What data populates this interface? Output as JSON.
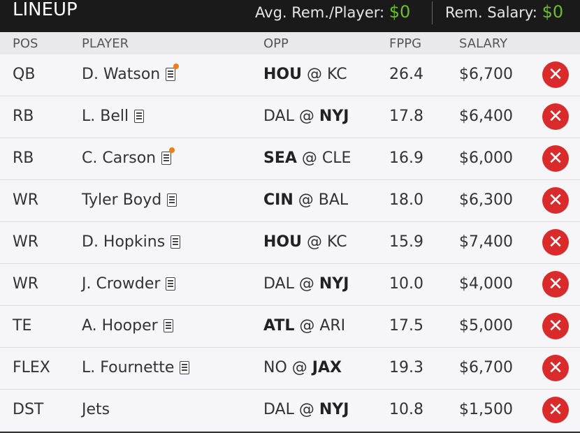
{
  "header": {
    "title": "LINEUP",
    "avg_label": "Avg. Rem./Player:",
    "avg_value": "$0",
    "rem_label": "Rem. Salary:",
    "rem_value": "$0"
  },
  "columns": {
    "pos": "POS",
    "player": "PLAYER",
    "opp": "OPP",
    "fppg": "FPPG",
    "salary": "SALARY"
  },
  "rows": [
    {
      "pos": "QB",
      "player": "D. Watson",
      "news_alert": true,
      "opp_bold": "HOU",
      "opp_rest": " @ KC",
      "fppg": "26.4",
      "salary": "$6,700"
    },
    {
      "pos": "RB",
      "player": "L. Bell",
      "news_alert": false,
      "opp_pre": "DAL @ ",
      "opp_bold": "NYJ",
      "fppg": "17.8",
      "salary": "$6,400"
    },
    {
      "pos": "RB",
      "player": "C. Carson",
      "news_alert": true,
      "opp_bold": "SEA",
      "opp_rest": " @ CLE",
      "fppg": "16.9",
      "salary": "$6,000"
    },
    {
      "pos": "WR",
      "player": "Tyler Boyd",
      "news_alert": false,
      "opp_bold": "CIN",
      "opp_rest": " @ BAL",
      "fppg": "18.0",
      "salary": "$6,300"
    },
    {
      "pos": "WR",
      "player": "D. Hopkins",
      "news_alert": false,
      "opp_bold": "HOU",
      "opp_rest": " @ KC",
      "fppg": "15.9",
      "salary": "$7,400"
    },
    {
      "pos": "WR",
      "player": "J. Crowder",
      "news_alert": false,
      "opp_pre": "DAL @ ",
      "opp_bold": "NYJ",
      "fppg": "10.0",
      "salary": "$4,000"
    },
    {
      "pos": "TE",
      "player": "A. Hooper",
      "news_alert": false,
      "opp_bold": "ATL",
      "opp_rest": " @ ARI",
      "fppg": "17.5",
      "salary": "$5,000"
    },
    {
      "pos": "FLEX",
      "player": "L. Fournette",
      "news_alert": false,
      "opp_pre": "NO @ ",
      "opp_bold": "JAX",
      "fppg": "19.3",
      "salary": "$6,700"
    },
    {
      "pos": "DST",
      "player": "Jets",
      "news": false,
      "opp_pre": "DAL @ ",
      "opp_bold": "NYJ",
      "fppg": "10.8",
      "salary": "$1,500"
    }
  ],
  "icons": {
    "remove": "remove-x-icon",
    "news": "news-icon",
    "alert_color": "#ef7d15",
    "remove_color": "#d92b2b",
    "money_color": "#6bbd2c"
  }
}
